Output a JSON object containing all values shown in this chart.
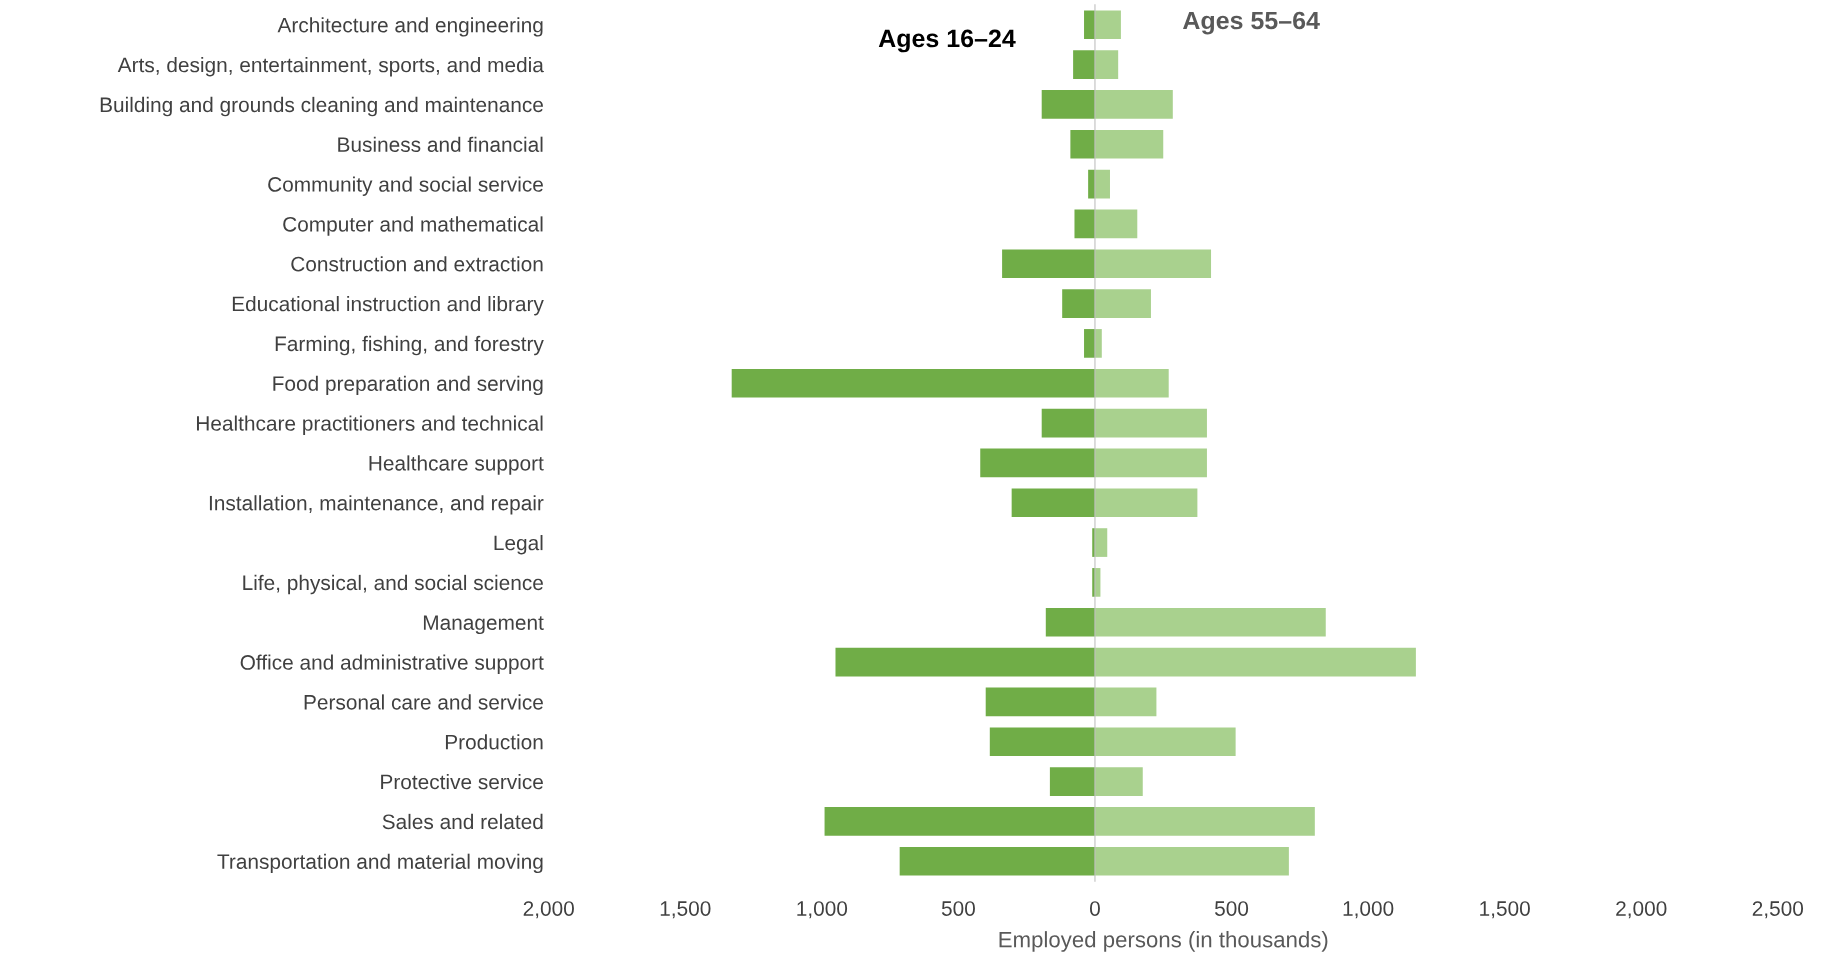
{
  "chart_data": {
    "type": "bar",
    "orientation": "horizontal",
    "stacked": true,
    "xlabel": "Employed persons (in thousands)",
    "categories": [
      "Architecture and engineering",
      "Arts, design, entertainment, sports, and media",
      "Building and grounds cleaning and maintenance",
      "Business and financial",
      "Community and social service",
      "Computer and mathematical",
      "Construction and extraction",
      "Educational instruction and library",
      "Farming, fishing, and forestry",
      "Food preparation and serving",
      "Healthcare practitioners and technical",
      "Healthcare support",
      "Installation, maintenance, and repair",
      "Legal",
      "Life, physical, and social science",
      "Management",
      "Office and administrative support",
      "Personal care and service",
      "Production",
      "Protective service",
      "Sales and related",
      "Transportation and material moving"
    ],
    "series": [
      {
        "name": "Ages 16–24",
        "color": "#70ad47",
        "values": [
          -40,
          -80,
          -195,
          -90,
          -25,
          -75,
          -340,
          -120,
          -40,
          -1330,
          -195,
          -420,
          -305,
          -10,
          -10,
          -180,
          -950,
          -400,
          -385,
          -165,
          -990,
          -715
        ]
      },
      {
        "name": "Ages 55–64",
        "color": "#a9d18e",
        "values": [
          95,
          85,
          285,
          250,
          55,
          155,
          425,
          205,
          25,
          270,
          410,
          410,
          375,
          45,
          20,
          845,
          1175,
          225,
          515,
          175,
          805,
          710
        ]
      }
    ],
    "xlim": [
      -2000,
      2500
    ],
    "xticks": [
      {
        "value": -2000,
        "label": "2,000"
      },
      {
        "value": -1500,
        "label": "1,500"
      },
      {
        "value": -1000,
        "label": "1,000"
      },
      {
        "value": -500,
        "label": "500"
      },
      0,
      500,
      {
        "value": 1000,
        "label": "1,000"
      },
      {
        "value": 1500,
        "label": "1,500"
      },
      {
        "value": 2000,
        "label": "2,000"
      },
      {
        "value": 2500,
        "label": "2,500"
      }
    ],
    "legend": false
  }
}
